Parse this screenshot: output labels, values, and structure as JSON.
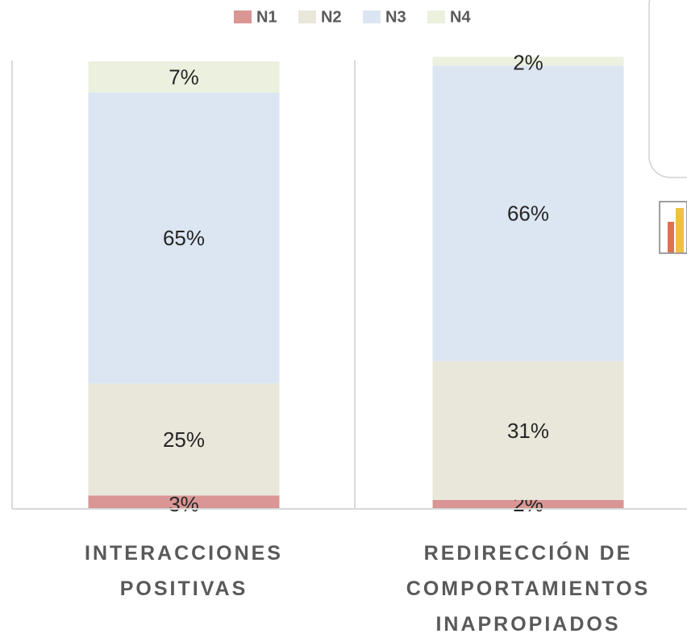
{
  "chart_data": {
    "type": "stacked_bar",
    "categories": [
      "INTERACCIONES POSITIVAS",
      "REDIRECCIÓN DE COMPORTAMIENTOS INAPROPIADOS"
    ],
    "series": [
      {
        "name": "N1",
        "color": "#d99694",
        "values": [
          3,
          2
        ],
        "value_labels": [
          "3%",
          "2%"
        ]
      },
      {
        "name": "N2",
        "color": "#e9e6da",
        "values": [
          25,
          31
        ],
        "value_labels": [
          "25%",
          "31%"
        ]
      },
      {
        "name": "N3",
        "color": "#dce6f2",
        "values": [
          65,
          66
        ],
        "value_labels": [
          "65%",
          "66%"
        ]
      },
      {
        "name": "N4",
        "color": "#ebf1de",
        "values": [
          7,
          2
        ],
        "value_labels": [
          "7%",
          "2%"
        ]
      }
    ],
    "legend": "top"
  }
}
